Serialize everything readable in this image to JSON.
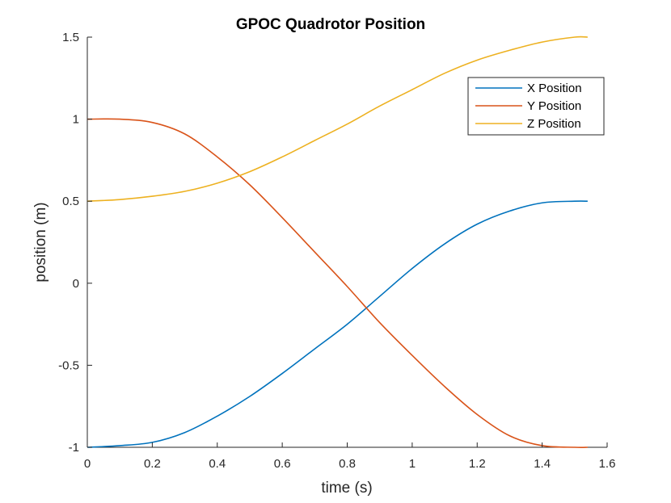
{
  "chart_data": {
    "type": "line",
    "title": "GPOC Quadrotor Position",
    "xlabel": "time (s)",
    "ylabel": "position (m)",
    "xlim": [
      0,
      1.6
    ],
    "ylim": [
      -1,
      1.5
    ],
    "xticks": [
      0,
      0.2,
      0.4,
      0.6,
      0.8,
      1,
      1.2,
      1.4,
      1.6
    ],
    "xtick_labels": [
      "0",
      "0.2",
      "0.4",
      "0.6",
      "0.8",
      "1",
      "1.2",
      "1.4",
      "1.6"
    ],
    "yticks": [
      -1,
      -0.5,
      0,
      0.5,
      1,
      1.5
    ],
    "ytick_labels": [
      "-1",
      "-0.5",
      "0",
      "0.5",
      "1",
      "1.5"
    ],
    "grid": false,
    "legend_position": "top-right",
    "x": [
      0,
      0.1,
      0.2,
      0.3,
      0.4,
      0.5,
      0.6,
      0.7,
      0.8,
      0.9,
      1.0,
      1.1,
      1.2,
      1.3,
      1.4,
      1.5,
      1.54
    ],
    "series": [
      {
        "name": "X Position",
        "color": "#0072BD",
        "values": [
          -1,
          -0.99,
          -0.97,
          -0.91,
          -0.81,
          -0.69,
          -0.55,
          -0.4,
          -0.25,
          -0.08,
          0.09,
          0.24,
          0.36,
          0.44,
          0.49,
          0.5,
          0.5
        ]
      },
      {
        "name": "Y Position",
        "color": "#D95319",
        "values": [
          1,
          1,
          0.98,
          0.91,
          0.77,
          0.6,
          0.4,
          0.19,
          -0.02,
          -0.24,
          -0.44,
          -0.63,
          -0.8,
          -0.93,
          -0.99,
          -1.0,
          -1.0
        ]
      },
      {
        "name": "Z Position",
        "color": "#EDB120",
        "values": [
          0.5,
          0.51,
          0.53,
          0.56,
          0.61,
          0.68,
          0.77,
          0.87,
          0.97,
          1.08,
          1.18,
          1.28,
          1.36,
          1.42,
          1.47,
          1.5,
          1.5
        ]
      }
    ]
  }
}
